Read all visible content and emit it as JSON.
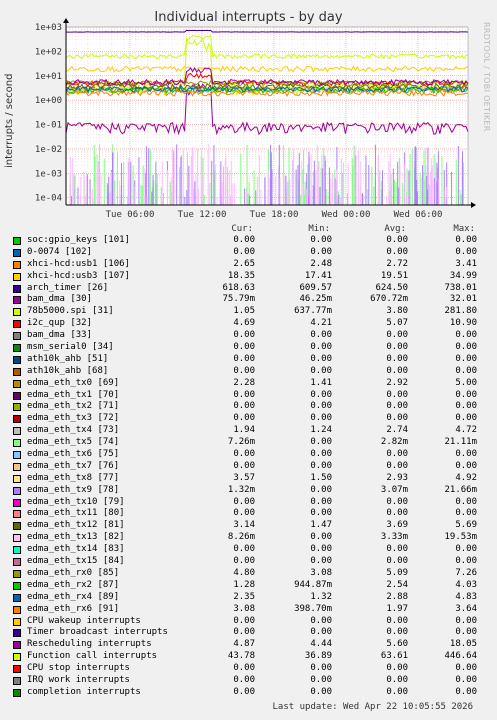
{
  "title": "Individual interrupts - by day",
  "vendor": "RRDTOOL / TOBI OETIKER",
  "ylabel": "interrupts / second",
  "columns": [
    "Cur:",
    "Min:",
    "Avg:",
    "Max:"
  ],
  "footer": "Last update: Wed Apr 22 10:05:55 2026",
  "chart_data": {
    "type": "line",
    "title": "Individual interrupts - by day",
    "ylabel": "interrupts / second",
    "yscale": "log",
    "ylim": [
      5e-05,
      1000
    ],
    "yticks": [
      "1e-04",
      "1e-03",
      "1e-02",
      "1e-01",
      "1e+00",
      "1e+01",
      "1e+02",
      "1e+03"
    ],
    "xticks": [
      "Tue 06:00",
      "Tue 12:00",
      "Tue 18:00",
      "Wed 00:00",
      "Wed 06:00"
    ],
    "grid": true
  },
  "legend": [
    {
      "name": "soc:gpio_keys [101]",
      "color": "#00cc00",
      "cur": "0.00",
      "min": "0.00",
      "avg": "0.00",
      "max": "0.00"
    },
    {
      "name": "0-0074 [102]",
      "color": "#0066b3",
      "cur": "0.00",
      "min": "0.00",
      "avg": "0.00",
      "max": "0.00"
    },
    {
      "name": "xhci-hcd:usb1 [106]",
      "color": "#ff8000",
      "cur": "2.65",
      "min": "2.48",
      "avg": "2.72",
      "max": "3.41"
    },
    {
      "name": "xhci-hcd:usb3 [107]",
      "color": "#ffcc00",
      "cur": "18.35",
      "min": "17.41",
      "avg": "19.51",
      "max": "34.99"
    },
    {
      "name": "arch_timer [26]",
      "color": "#330099",
      "cur": "618.63",
      "min": "609.57",
      "avg": "624.50",
      "max": "738.01"
    },
    {
      "name": "bam_dma [30]",
      "color": "#990099",
      "cur": "75.79m",
      "min": "46.25m",
      "avg": "670.72m",
      "max": "32.01"
    },
    {
      "name": "78b5000.spi [31]",
      "color": "#ccff00",
      "cur": "1.05",
      "min": "637.77m",
      "avg": "3.80",
      "max": "281.80"
    },
    {
      "name": "i2c_qup [32]",
      "color": "#ff0000",
      "cur": "4.69",
      "min": "4.21",
      "avg": "5.07",
      "max": "10.90"
    },
    {
      "name": "bam_dma [33]",
      "color": "#808080",
      "cur": "0.00",
      "min": "0.00",
      "avg": "0.00",
      "max": "0.00"
    },
    {
      "name": "msm_serial0 [34]",
      "color": "#008f00",
      "cur": "0.00",
      "min": "0.00",
      "avg": "0.00",
      "max": "0.00"
    },
    {
      "name": "ath10k_ahb [51]",
      "color": "#00487d",
      "cur": "0.00",
      "min": "0.00",
      "avg": "0.00",
      "max": "0.00"
    },
    {
      "name": "ath10k_ahb [68]",
      "color": "#b35a00",
      "cur": "0.00",
      "min": "0.00",
      "avg": "0.00",
      "max": "0.00"
    },
    {
      "name": "edma_eth_tx0 [69]",
      "color": "#b38f00",
      "cur": "2.28",
      "min": "1.41",
      "avg": "2.92",
      "max": "5.00"
    },
    {
      "name": "edma_eth_tx1 [70]",
      "color": "#6b006b",
      "cur": "0.00",
      "min": "0.00",
      "avg": "0.00",
      "max": "0.00"
    },
    {
      "name": "edma_eth_tx2 [71]",
      "color": "#8fb300",
      "cur": "0.00",
      "min": "0.00",
      "avg": "0.00",
      "max": "0.00"
    },
    {
      "name": "edma_eth_tx3 [72]",
      "color": "#b30000",
      "cur": "0.00",
      "min": "0.00",
      "avg": "0.00",
      "max": "0.00"
    },
    {
      "name": "edma_eth_tx4 [73]",
      "color": "#bebebe",
      "cur": "1.94",
      "min": "1.24",
      "avg": "2.74",
      "max": "4.72"
    },
    {
      "name": "edma_eth_tx5 [74]",
      "color": "#80ff80",
      "cur": "7.26m",
      "min": "0.00",
      "avg": "2.82m",
      "max": "21.11m"
    },
    {
      "name": "edma_eth_tx6 [75]",
      "color": "#80c9ff",
      "cur": "0.00",
      "min": "0.00",
      "avg": "0.00",
      "max": "0.00"
    },
    {
      "name": "edma_eth_tx7 [76]",
      "color": "#ffc080",
      "cur": "0.00",
      "min": "0.00",
      "avg": "0.00",
      "max": "0.00"
    },
    {
      "name": "edma_eth_tx8 [77]",
      "color": "#ffe680",
      "cur": "3.57",
      "min": "1.50",
      "avg": "2.93",
      "max": "4.92"
    },
    {
      "name": "edma_eth_tx9 [78]",
      "color": "#aa80ff",
      "cur": "1.32m",
      "min": "0.00",
      "avg": "3.07m",
      "max": "21.66m"
    },
    {
      "name": "edma_eth_tx10 [79]",
      "color": "#ee00cc",
      "cur": "0.00",
      "min": "0.00",
      "avg": "0.00",
      "max": "0.00"
    },
    {
      "name": "edma_eth_tx11 [80]",
      "color": "#ff8080",
      "cur": "0.00",
      "min": "0.00",
      "avg": "0.00",
      "max": "0.00"
    },
    {
      "name": "edma_eth_tx12 [81]",
      "color": "#666600",
      "cur": "3.14",
      "min": "1.47",
      "avg": "3.69",
      "max": "5.69"
    },
    {
      "name": "edma_eth_tx13 [82]",
      "color": "#ffbfff",
      "cur": "8.26m",
      "min": "0.00",
      "avg": "3.33m",
      "max": "19.53m"
    },
    {
      "name": "edma_eth_tx14 [83]",
      "color": "#00ffcc",
      "cur": "0.00",
      "min": "0.00",
      "avg": "0.00",
      "max": "0.00"
    },
    {
      "name": "edma_eth_tx15 [84]",
      "color": "#cc6699",
      "cur": "0.00",
      "min": "0.00",
      "avg": "0.00",
      "max": "0.00"
    },
    {
      "name": "edma_eth_rx0 [85]",
      "color": "#999900",
      "cur": "4.80",
      "min": "3.08",
      "avg": "5.09",
      "max": "7.26"
    },
    {
      "name": "edma_eth_rx2 [87]",
      "color": "#00cc00",
      "cur": "1.28",
      "min": "944.87m",
      "avg": "2.54",
      "max": "4.03"
    },
    {
      "name": "edma_eth_rx4 [89]",
      "color": "#0066b3",
      "cur": "2.35",
      "min": "1.32",
      "avg": "2.88",
      "max": "4.83"
    },
    {
      "name": "edma_eth_rx6 [91]",
      "color": "#ff8000",
      "cur": "3.08",
      "min": "398.70m",
      "avg": "1.97",
      "max": "3.64"
    },
    {
      "name": "CPU wakeup interrupts",
      "color": "#ffcc00",
      "cur": "0.00",
      "min": "0.00",
      "avg": "0.00",
      "max": "0.00"
    },
    {
      "name": "Timer broadcast interrupts",
      "color": "#330099",
      "cur": "0.00",
      "min": "0.00",
      "avg": "0.00",
      "max": "0.00"
    },
    {
      "name": "Rescheduling interrupts",
      "color": "#990099",
      "cur": "4.87",
      "min": "4.44",
      "avg": "5.60",
      "max": "18.05"
    },
    {
      "name": "Function call interrupts",
      "color": "#ccff00",
      "cur": "43.78",
      "min": "36.89",
      "avg": "63.61",
      "max": "446.64"
    },
    {
      "name": "CPU stop interrupts",
      "color": "#ff0000",
      "cur": "0.00",
      "min": "0.00",
      "avg": "0.00",
      "max": "0.00"
    },
    {
      "name": "IRQ work interrupts",
      "color": "#808080",
      "cur": "0.00",
      "min": "0.00",
      "avg": "0.00",
      "max": "0.00"
    },
    {
      "name": "completion interrupts",
      "color": "#008f00",
      "cur": "0.00",
      "min": "0.00",
      "avg": "0.00",
      "max": "0.00"
    }
  ]
}
